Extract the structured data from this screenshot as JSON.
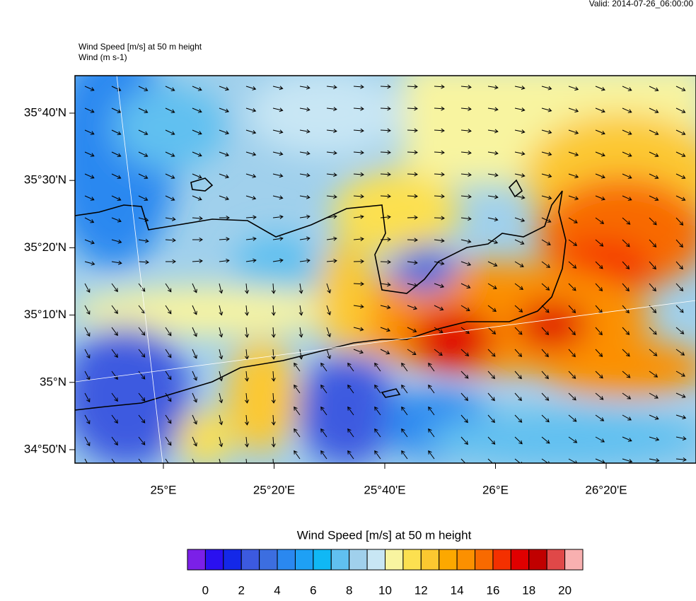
{
  "header": {
    "valid": "Valid: 2014-07-26_06:00:00",
    "title": "Wind Speed [m/s] at 50 m height",
    "subtitle": "Wind   (m s-1)"
  },
  "map": {
    "lat_labels": [
      "35°40'N",
      "35°30'N",
      "35°20'N",
      "35°10'N",
      "35°N",
      "34°50'N"
    ],
    "lon_labels": [
      "25°E",
      "25°20'E",
      "25°40'E",
      "26°E",
      "26°20'E"
    ]
  },
  "colorbar": {
    "title": "Wind Speed [m/s] at 50 m height",
    "colors": [
      "#7b20e8",
      "#2a10f0",
      "#1428e8",
      "#3c5ae0",
      "#3c6ee0",
      "#2a88f0",
      "#1ea0f5",
      "#10b8f5",
      "#60c0f0",
      "#a0d0ec",
      "#c8e6f4",
      "#f8f4a0",
      "#fce050",
      "#fcc830",
      "#fca800",
      "#fc9000",
      "#f86a00",
      "#f43000",
      "#e00000",
      "#c00000",
      "#e04848",
      "#f8b0b0"
    ],
    "labels": [
      0,
      2,
      4,
      6,
      8,
      10,
      12,
      14,
      16,
      18,
      20
    ]
  }
}
